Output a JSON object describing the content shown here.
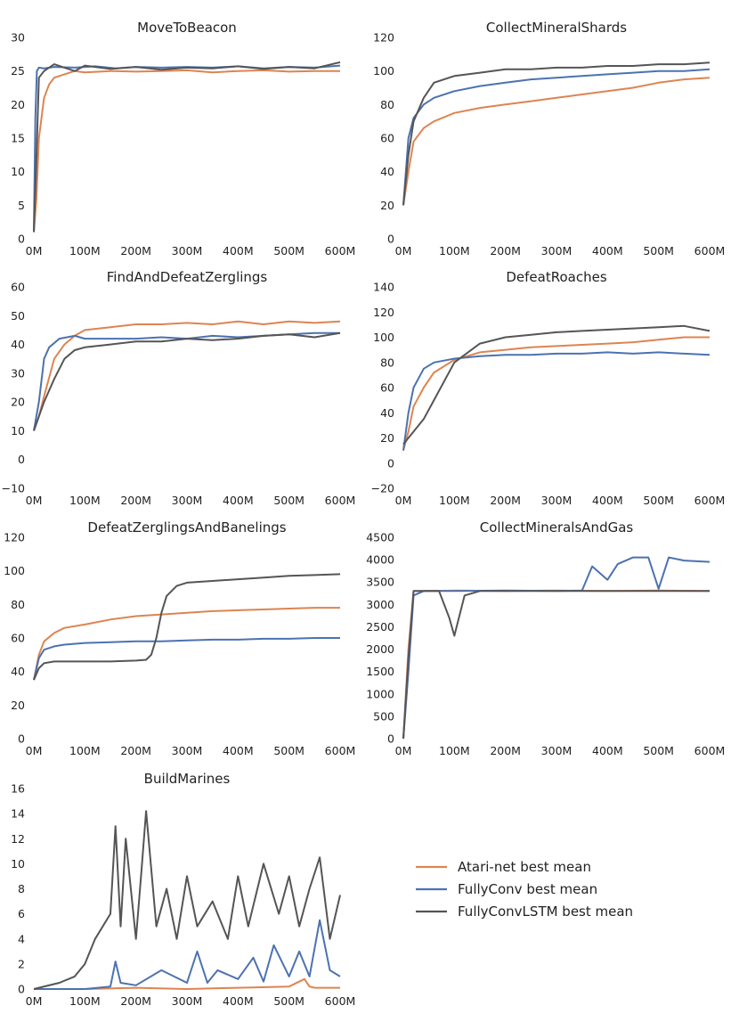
{
  "chart_data": [
    {
      "type": "line",
      "title": "MoveToBeacon",
      "xlabel": "",
      "ylabel": "",
      "xlim": [
        0,
        600
      ],
      "ylim": [
        0,
        30
      ],
      "x_ticks": [
        "0M",
        "100M",
        "200M",
        "300M",
        "400M",
        "500M",
        "600M"
      ],
      "y_ticks": [
        "0",
        "5",
        "10",
        "15",
        "20",
        "25",
        "30"
      ],
      "series": [
        {
          "name": "Atari-net best mean",
          "color": "#dd8452",
          "x": [
            0,
            5,
            10,
            20,
            30,
            40,
            60,
            80,
            100,
            150,
            200,
            250,
            300,
            350,
            400,
            450,
            500,
            550,
            600
          ],
          "y": [
            1,
            6,
            15,
            21,
            23,
            24,
            24.5,
            25,
            24.8,
            25,
            24.9,
            25,
            25.1,
            24.8,
            25,
            25.1,
            24.9,
            25,
            25
          ]
        },
        {
          "name": "FullyConv best mean",
          "color": "#4c72b0",
          "x": [
            0,
            3,
            6,
            10,
            20,
            40,
            80,
            120,
            160,
            200,
            250,
            300,
            350,
            400,
            450,
            500,
            550,
            600
          ],
          "y": [
            1,
            18,
            25,
            25.5,
            25.4,
            25.6,
            25.5,
            25.7,
            25.4,
            25.6,
            25.5,
            25.6,
            25.5,
            25.7,
            25.4,
            25.6,
            25.5,
            25.8
          ]
        },
        {
          "name": "FullyConvLSTM best mean",
          "color": "#555555",
          "x": [
            0,
            5,
            10,
            20,
            40,
            60,
            80,
            100,
            150,
            200,
            250,
            300,
            350,
            400,
            450,
            500,
            550,
            600
          ],
          "y": [
            1,
            12,
            24,
            25,
            26,
            25.5,
            25,
            25.8,
            25.3,
            25.6,
            25.2,
            25.5,
            25.4,
            25.7,
            25.3,
            25.6,
            25.4,
            26.3
          ]
        }
      ]
    },
    {
      "type": "line",
      "title": "CollectMineralShards",
      "xlabel": "",
      "ylabel": "",
      "xlim": [
        0,
        600
      ],
      "ylim": [
        0,
        120
      ],
      "x_ticks": [
        "0M",
        "100M",
        "200M",
        "300M",
        "400M",
        "500M",
        "600M"
      ],
      "y_ticks": [
        "0",
        "20",
        "40",
        "60",
        "80",
        "100",
        "120"
      ],
      "series": [
        {
          "name": "Atari-net best mean",
          "color": "#dd8452",
          "x": [
            0,
            10,
            20,
            40,
            60,
            100,
            150,
            200,
            250,
            300,
            350,
            400,
            450,
            500,
            550,
            600
          ],
          "y": [
            20,
            40,
            58,
            66,
            70,
            75,
            78,
            80,
            82,
            84,
            86,
            88,
            90,
            93,
            95,
            96
          ]
        },
        {
          "name": "FullyConv best mean",
          "color": "#4c72b0",
          "x": [
            0,
            10,
            20,
            40,
            60,
            100,
            150,
            200,
            250,
            300,
            350,
            400,
            450,
            500,
            550,
            600
          ],
          "y": [
            20,
            60,
            72,
            80,
            84,
            88,
            91,
            93,
            95,
            96,
            97,
            98,
            99,
            100,
            100,
            101
          ]
        },
        {
          "name": "FullyConvLSTM best mean",
          "color": "#555555",
          "x": [
            0,
            10,
            20,
            40,
            60,
            100,
            150,
            200,
            250,
            300,
            350,
            400,
            450,
            500,
            550,
            600
          ],
          "y": [
            20,
            50,
            70,
            84,
            93,
            97,
            99,
            101,
            101,
            102,
            102,
            103,
            103,
            104,
            104,
            105
          ]
        }
      ]
    },
    {
      "type": "line",
      "title": "FindAndDefeatZerglings",
      "xlabel": "",
      "ylabel": "",
      "xlim": [
        0,
        600
      ],
      "ylim": [
        -10,
        60
      ],
      "x_ticks": [
        "0M",
        "100M",
        "200M",
        "300M",
        "400M",
        "500M",
        "600M"
      ],
      "y_ticks": [
        "−10",
        "0",
        "10",
        "20",
        "30",
        "40",
        "50",
        "60"
      ],
      "series": [
        {
          "name": "Atari-net best mean",
          "color": "#dd8452",
          "x": [
            0,
            10,
            20,
            40,
            60,
            80,
            100,
            150,
            200,
            250,
            300,
            350,
            400,
            450,
            500,
            550,
            600
          ],
          "y": [
            10,
            15,
            22,
            35,
            40,
            43,
            45,
            46,
            47,
            47,
            47.5,
            47,
            48,
            47,
            48,
            47.5,
            48
          ]
        },
        {
          "name": "FullyConv best mean",
          "color": "#4c72b0",
          "x": [
            0,
            10,
            20,
            30,
            50,
            80,
            100,
            150,
            200,
            250,
            300,
            350,
            400,
            450,
            500,
            550,
            600
          ],
          "y": [
            10,
            20,
            35,
            39,
            42,
            43,
            42,
            42,
            42,
            42.5,
            42,
            43,
            42.5,
            43,
            43.5,
            44,
            44
          ]
        },
        {
          "name": "FullyConvLSTM best mean",
          "color": "#555555",
          "x": [
            0,
            10,
            20,
            40,
            60,
            80,
            100,
            150,
            200,
            250,
            300,
            350,
            400,
            450,
            500,
            550,
            600
          ],
          "y": [
            10,
            15,
            20,
            28,
            35,
            38,
            39,
            40,
            41,
            41,
            42,
            41.5,
            42,
            43,
            43.5,
            42.5,
            44
          ]
        }
      ]
    },
    {
      "type": "line",
      "title": "DefeatRoaches",
      "xlabel": "",
      "ylabel": "",
      "xlim": [
        0,
        600
      ],
      "ylim": [
        -20,
        140
      ],
      "x_ticks": [
        "0M",
        "100M",
        "200M",
        "300M",
        "400M",
        "500M",
        "600M"
      ],
      "y_ticks": [
        "−20",
        "0",
        "20",
        "40",
        "60",
        "80",
        "100",
        "120",
        "140"
      ],
      "series": [
        {
          "name": "Atari-net best mean",
          "color": "#dd8452",
          "x": [
            0,
            10,
            20,
            40,
            60,
            100,
            150,
            200,
            250,
            300,
            350,
            400,
            450,
            500,
            550,
            600
          ],
          "y": [
            10,
            25,
            45,
            60,
            72,
            82,
            88,
            90,
            92,
            93,
            94,
            95,
            96,
            98,
            100,
            100
          ]
        },
        {
          "name": "FullyConv best mean",
          "color": "#4c72b0",
          "x": [
            0,
            10,
            20,
            40,
            60,
            100,
            150,
            200,
            250,
            300,
            350,
            400,
            450,
            500,
            550,
            600
          ],
          "y": [
            10,
            40,
            60,
            75,
            80,
            83,
            85,
            86,
            86,
            87,
            87,
            88,
            87,
            88,
            87,
            86
          ]
        },
        {
          "name": "FullyConvLSTM best mean",
          "color": "#555555",
          "x": [
            0,
            10,
            20,
            40,
            60,
            100,
            150,
            200,
            250,
            300,
            350,
            400,
            450,
            500,
            550,
            600
          ],
          "y": [
            15,
            20,
            25,
            35,
            50,
            80,
            95,
            100,
            102,
            104,
            105,
            106,
            107,
            108,
            109,
            105
          ]
        }
      ]
    },
    {
      "type": "line",
      "title": "DefeatZerglingsAndBanelings",
      "xlabel": "",
      "ylabel": "",
      "xlim": [
        0,
        600
      ],
      "ylim": [
        0,
        120
      ],
      "x_ticks": [
        "0M",
        "100M",
        "200M",
        "300M",
        "400M",
        "500M",
        "600M"
      ],
      "y_ticks": [
        "0",
        "20",
        "40",
        "60",
        "80",
        "100",
        "120"
      ],
      "series": [
        {
          "name": "Atari-net best mean",
          "color": "#dd8452",
          "x": [
            0,
            10,
            20,
            40,
            60,
            100,
            150,
            200,
            250,
            300,
            350,
            400,
            450,
            500,
            550,
            600
          ],
          "y": [
            35,
            50,
            58,
            63,
            66,
            68,
            71,
            73,
            74,
            75,
            76,
            76.5,
            77,
            77.5,
            78,
            78
          ]
        },
        {
          "name": "FullyConv best mean",
          "color": "#4c72b0",
          "x": [
            0,
            10,
            20,
            40,
            60,
            100,
            150,
            200,
            250,
            300,
            350,
            400,
            450,
            500,
            550,
            600
          ],
          "y": [
            35,
            48,
            53,
            55,
            56,
            57,
            57.5,
            58,
            58,
            58.5,
            59,
            59,
            59.5,
            59.5,
            60,
            60
          ]
        },
        {
          "name": "FullyConvLSTM best mean",
          "color": "#555555",
          "x": [
            0,
            10,
            20,
            40,
            60,
            100,
            150,
            200,
            220,
            230,
            240,
            250,
            260,
            280,
            300,
            350,
            400,
            450,
            500,
            550,
            600
          ],
          "y": [
            35,
            42,
            45,
            46,
            46,
            46,
            46,
            46.5,
            47,
            50,
            60,
            75,
            85,
            91,
            93,
            94,
            95,
            96,
            97,
            97.5,
            98
          ]
        }
      ]
    },
    {
      "type": "line",
      "title": "CollectMineralsAndGas",
      "xlabel": "",
      "ylabel": "",
      "xlim": [
        0,
        600
      ],
      "ylim": [
        0,
        4500
      ],
      "x_ticks": [
        "0M",
        "100M",
        "200M",
        "300M",
        "400M",
        "500M",
        "600M"
      ],
      "y_ticks": [
        "0",
        "500",
        "1000",
        "1500",
        "2000",
        "2500",
        "3000",
        "3500",
        "4000",
        "4500"
      ],
      "series": [
        {
          "name": "Atari-net best mean",
          "color": "#dd8452",
          "x": [
            0,
            10,
            20,
            40,
            100,
            200,
            300,
            400,
            500,
            600
          ],
          "y": [
            0,
            2000,
            3300,
            3300,
            3310,
            3300,
            3310,
            3300,
            3310,
            3300
          ]
        },
        {
          "name": "FullyConv best mean",
          "color": "#4c72b0",
          "x": [
            0,
            10,
            20,
            40,
            100,
            200,
            300,
            350,
            370,
            400,
            420,
            450,
            480,
            500,
            520,
            550,
            600
          ],
          "y": [
            0,
            1500,
            3200,
            3300,
            3300,
            3310,
            3300,
            3310,
            3850,
            3550,
            3900,
            4050,
            4050,
            3350,
            4050,
            3980,
            3950
          ]
        },
        {
          "name": "FullyConvLSTM best mean",
          "color": "#555555",
          "x": [
            0,
            10,
            20,
            40,
            70,
            90,
            100,
            120,
            150,
            200,
            300,
            400,
            500,
            600
          ],
          "y": [
            0,
            1800,
            3300,
            3300,
            3300,
            2700,
            2300,
            3200,
            3300,
            3300,
            3300,
            3300,
            3300,
            3300
          ]
        }
      ]
    },
    {
      "type": "line",
      "title": "BuildMarines",
      "xlabel": "",
      "ylabel": "",
      "xlim": [
        0,
        600
      ],
      "ylim": [
        0,
        16
      ],
      "x_ticks": [
        "0M",
        "100M",
        "200M",
        "300M",
        "400M",
        "500M",
        "600M"
      ],
      "y_ticks": [
        "0",
        "2",
        "4",
        "6",
        "8",
        "10",
        "12",
        "14",
        "16"
      ],
      "series": [
        {
          "name": "Atari-net best mean",
          "color": "#dd8452",
          "x": [
            0,
            100,
            200,
            300,
            400,
            500,
            530,
            540,
            550,
            600
          ],
          "y": [
            0,
            0,
            0.1,
            0,
            0.1,
            0.2,
            0.8,
            0.2,
            0.1,
            0.1
          ]
        },
        {
          "name": "FullyConv best mean",
          "color": "#4c72b0",
          "x": [
            0,
            100,
            150,
            160,
            170,
            200,
            250,
            300,
            320,
            340,
            360,
            400,
            430,
            450,
            470,
            500,
            520,
            540,
            560,
            580,
            600
          ],
          "y": [
            0,
            0,
            0.2,
            2.2,
            0.5,
            0.3,
            1.5,
            0.5,
            3,
            0.5,
            1.5,
            0.8,
            2.5,
            0.6,
            3.5,
            1,
            3,
            1,
            5.5,
            1.5,
            1
          ]
        },
        {
          "name": "FullyConvLSTM best mean",
          "color": "#555555",
          "x": [
            0,
            50,
            80,
            100,
            120,
            150,
            160,
            170,
            180,
            200,
            210,
            220,
            240,
            260,
            280,
            300,
            320,
            350,
            380,
            400,
            420,
            450,
            480,
            500,
            520,
            540,
            560,
            580,
            600
          ],
          "y": [
            0,
            0.5,
            1,
            2,
            4,
            6,
            13,
            5,
            12,
            4,
            9,
            14.2,
            5,
            8,
            4,
            9,
            5,
            7,
            4,
            9,
            5,
            10,
            6,
            9,
            5,
            8,
            10.5,
            4,
            7.5
          ]
        }
      ]
    }
  ],
  "legend": {
    "placement": "lower-right",
    "items": [
      {
        "label": "Atari-net best mean",
        "color": "#dd8452"
      },
      {
        "label": "FullyConv best mean",
        "color": "#4c72b0"
      },
      {
        "label": "FullyConvLSTM best mean",
        "color": "#555555"
      }
    ]
  }
}
